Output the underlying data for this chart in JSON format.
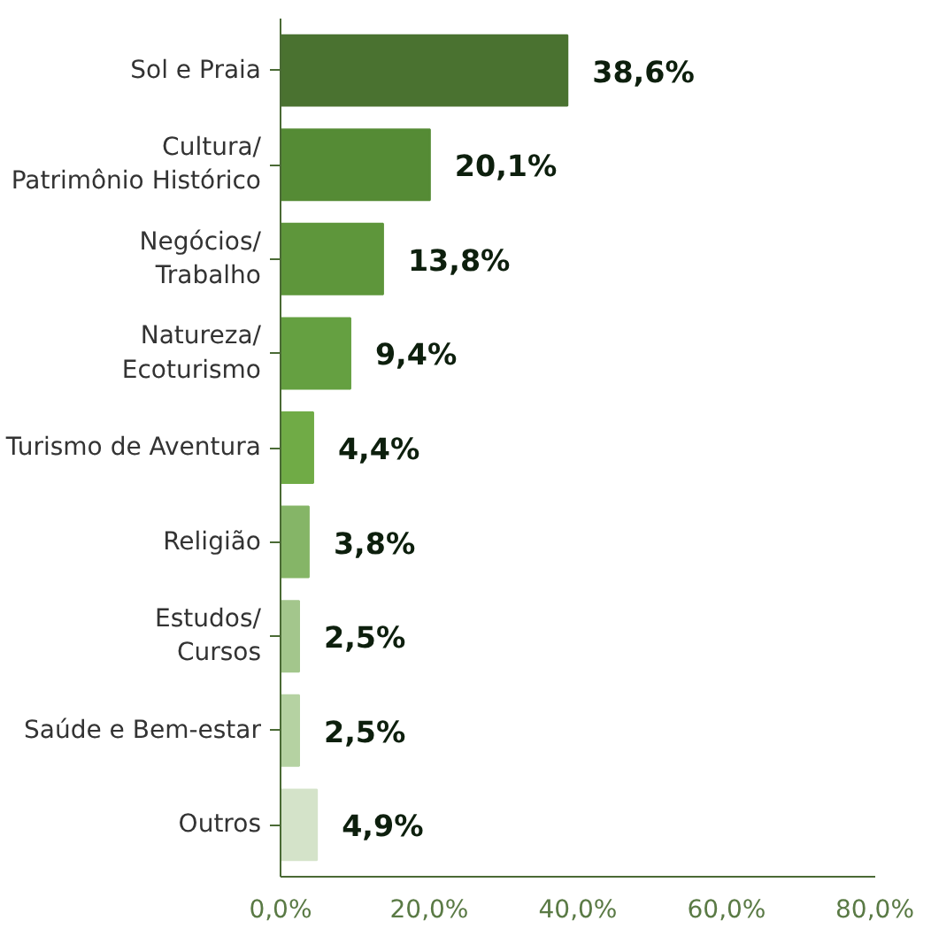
{
  "chart_data": {
    "type": "bar",
    "orientation": "horizontal",
    "categories": [
      "Sol e Praia",
      "Cultura/\nPatrimônio Histórico",
      "Negócios/\nTrabalho",
      "Natureza/\nEcoturismo",
      "Turismo de Aventura",
      "Religião",
      "Estudos/\nCursos",
      "Saúde e Bem-estar",
      "Outros"
    ],
    "values": [
      38.6,
      20.1,
      13.8,
      9.4,
      4.4,
      3.8,
      2.5,
      2.5,
      4.9
    ],
    "value_labels": [
      "38,6%",
      "20,1%",
      "13,8%",
      "9,4%",
      "4,4%",
      "3,8%",
      "2,5%",
      "2,5%",
      "4,9%"
    ],
    "colors": [
      "#4a7230",
      "#558b35",
      "#5e963b",
      "#65a041",
      "#70ab46",
      "#85b567",
      "#a3c68c",
      "#b5d2a2",
      "#d4e3c9"
    ],
    "xlim": [
      0,
      80
    ],
    "xticks": [
      {
        "value": 0,
        "label": "0,0%"
      },
      {
        "value": 20,
        "label": "20,0%"
      },
      {
        "value": 40,
        "label": "40,0%"
      },
      {
        "value": 60,
        "label": "60,0%"
      },
      {
        "value": 80,
        "label": "80,0%"
      }
    ]
  }
}
